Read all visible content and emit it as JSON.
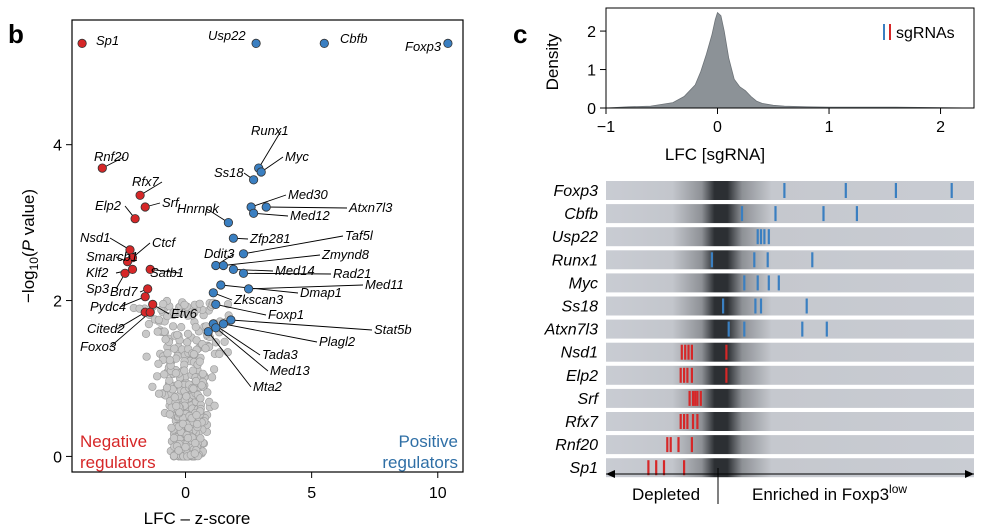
{
  "panel_b": {
    "letter": "b",
    "neg_label": [
      "Negative",
      "regulators"
    ],
    "pos_label": [
      "Positive",
      "regulators"
    ]
  },
  "panel_c": {
    "letter": "c",
    "legend_label": "sgRNAs",
    "arrow_left": "Depleted",
    "arrow_right": "Enriched in Foxp3",
    "arrow_right_sup": "low"
  },
  "colors": {
    "negative": "#d62728",
    "positive": "#3a7fc1",
    "neutral": "#c8c8c8",
    "density_fill": "#8c9297",
    "track_bg": "#c9ccd3",
    "negative_text": "#d62728",
    "positive_text": "#2f6fa6"
  },
  "chart_data": [
    {
      "type": "scatter",
      "title": "",
      "xlabel": "LFC – z-score",
      "ylabel": "−log10(P value)",
      "xlim": [
        -4.5,
        11
      ],
      "ylim": [
        -0.2,
        5.6
      ],
      "xticks": [
        0,
        5,
        10
      ],
      "yticks": [
        0,
        2,
        4
      ],
      "labeled_points": [
        {
          "name": "Sp1",
          "x": -4.1,
          "y": 5.3,
          "group": "negative"
        },
        {
          "name": "Usp22",
          "x": 2.8,
          "y": 5.3,
          "group": "positive"
        },
        {
          "name": "Cbfb",
          "x": 5.5,
          "y": 5.3,
          "group": "positive"
        },
        {
          "name": "Foxp3",
          "x": 10.4,
          "y": 5.3,
          "group": "positive"
        },
        {
          "name": "Rnf20",
          "x": -3.3,
          "y": 3.7,
          "group": "negative"
        },
        {
          "name": "Rfx7",
          "x": -1.8,
          "y": 3.35,
          "group": "negative"
        },
        {
          "name": "Srf",
          "x": -1.6,
          "y": 3.2,
          "group": "negative"
        },
        {
          "name": "Elp2",
          "x": -2.0,
          "y": 3.05,
          "group": "negative"
        },
        {
          "name": "Nsd1",
          "x": -2.2,
          "y": 2.65,
          "group": "negative"
        },
        {
          "name": "Ctcf",
          "x": -2.1,
          "y": 2.55,
          "group": "negative"
        },
        {
          "name": "Smarcb1",
          "x": -2.3,
          "y": 2.5,
          "group": "negative"
        },
        {
          "name": "Klf2",
          "x": -2.1,
          "y": 2.4,
          "group": "negative"
        },
        {
          "name": "Satb1",
          "x": -1.4,
          "y": 2.4,
          "group": "negative"
        },
        {
          "name": "Sp3",
          "x": -2.4,
          "y": 2.35,
          "group": "negative"
        },
        {
          "name": "Brd7",
          "x": -1.5,
          "y": 2.15,
          "group": "negative"
        },
        {
          "name": "Pydc4",
          "x": -1.6,
          "y": 2.05,
          "group": "negative"
        },
        {
          "name": "Etv6",
          "x": -1.3,
          "y": 1.95,
          "group": "negative"
        },
        {
          "name": "Cited2",
          "x": -1.6,
          "y": 1.85,
          "group": "negative"
        },
        {
          "name": "Foxo3",
          "x": -1.4,
          "y": 1.85,
          "group": "negative"
        },
        {
          "name": "Runx1",
          "x": 2.9,
          "y": 3.7,
          "group": "positive"
        },
        {
          "name": "Myc",
          "x": 3.0,
          "y": 3.65,
          "group": "positive"
        },
        {
          "name": "Ss18",
          "x": 2.7,
          "y": 3.55,
          "group": "positive"
        },
        {
          "name": "Med30",
          "x": 2.6,
          "y": 3.2,
          "group": "positive"
        },
        {
          "name": "Atxn7l3",
          "x": 3.2,
          "y": 3.2,
          "group": "positive"
        },
        {
          "name": "Med12",
          "x": 2.7,
          "y": 3.12,
          "group": "positive"
        },
        {
          "name": "Hnrnpk",
          "x": 1.7,
          "y": 3.0,
          "group": "positive"
        },
        {
          "name": "Zfp281",
          "x": 1.9,
          "y": 2.8,
          "group": "positive"
        },
        {
          "name": "Taf5l",
          "x": 2.3,
          "y": 2.6,
          "group": "positive"
        },
        {
          "name": "Ddit3",
          "x": 1.2,
          "y": 2.45,
          "group": "positive"
        },
        {
          "name": "Zmynd8",
          "x": 1.5,
          "y": 2.45,
          "group": "positive"
        },
        {
          "name": "Med14",
          "x": 1.9,
          "y": 2.4,
          "group": "positive"
        },
        {
          "name": "Rad21",
          "x": 2.3,
          "y": 2.35,
          "group": "positive"
        },
        {
          "name": "Dmap1",
          "x": 1.4,
          "y": 2.2,
          "group": "positive"
        },
        {
          "name": "Med11",
          "x": 2.5,
          "y": 2.15,
          "group": "positive"
        },
        {
          "name": "Zkscan3",
          "x": 1.1,
          "y": 2.1,
          "group": "positive"
        },
        {
          "name": "Foxp1",
          "x": 1.2,
          "y": 1.95,
          "group": "positive"
        },
        {
          "name": "Stat5b",
          "x": 1.8,
          "y": 1.75,
          "group": "positive"
        },
        {
          "name": "Plagl2",
          "x": 1.5,
          "y": 1.7,
          "group": "positive"
        },
        {
          "name": "Tada3",
          "x": 1.1,
          "y": 1.7,
          "group": "positive"
        },
        {
          "name": "Med13",
          "x": 1.2,
          "y": 1.65,
          "group": "positive"
        },
        {
          "name": "Mta2",
          "x": 0.9,
          "y": 1.6,
          "group": "positive"
        }
      ]
    },
    {
      "type": "area",
      "title": "",
      "xlabel": "LFC [sgRNA]",
      "ylabel": "Density",
      "xlim": [
        -1,
        2.3
      ],
      "ylim": [
        0,
        2.6
      ],
      "xticks": [
        -1,
        0,
        1,
        2
      ],
      "yticks": [
        0,
        1,
        2
      ],
      "legend": "top-right",
      "x": [
        -1.0,
        -0.8,
        -0.6,
        -0.4,
        -0.3,
        -0.2,
        -0.15,
        -0.1,
        -0.05,
        -0.02,
        0.0,
        0.03,
        0.06,
        0.1,
        0.15,
        0.2,
        0.25,
        0.3,
        0.35,
        0.4,
        0.5,
        0.6,
        0.8,
        1.0,
        1.3,
        1.6,
        2.0,
        2.3
      ],
      "y": [
        0.0,
        0.03,
        0.05,
        0.14,
        0.3,
        0.6,
        0.95,
        1.4,
        1.9,
        2.3,
        2.48,
        2.4,
        2.0,
        1.3,
        0.75,
        0.55,
        0.45,
        0.3,
        0.18,
        0.12,
        0.07,
        0.05,
        0.03,
        0.02,
        0.02,
        0.02,
        0.01,
        0.0
      ]
    },
    {
      "type": "strip",
      "title": "",
      "xlabel": "",
      "xlim": [
        -1,
        2.3
      ],
      "rows": [
        {
          "gene": "Foxp3",
          "group": "positive",
          "sgrna_lfc": [
            0.6,
            1.15,
            1.6,
            2.1
          ]
        },
        {
          "gene": "Cbfb",
          "group": "positive",
          "sgrna_lfc": [
            0.22,
            0.52,
            0.95,
            1.25
          ]
        },
        {
          "gene": "Usp22",
          "group": "positive",
          "sgrna_lfc": [
            0.36,
            0.39,
            0.42,
            0.46
          ]
        },
        {
          "gene": "Runx1",
          "group": "positive",
          "sgrna_lfc": [
            -0.05,
            0.33,
            0.45,
            0.85
          ]
        },
        {
          "gene": "Myc",
          "group": "positive",
          "sgrna_lfc": [
            0.24,
            0.36,
            0.46,
            0.55
          ]
        },
        {
          "gene": "Ss18",
          "group": "positive",
          "sgrna_lfc": [
            0.05,
            0.34,
            0.39,
            0.8
          ]
        },
        {
          "gene": "Atxn7l3",
          "group": "positive",
          "sgrna_lfc": [
            0.1,
            0.24,
            0.76,
            0.98
          ]
        },
        {
          "gene": "Nsd1",
          "group": "negative",
          "sgrna_lfc": [
            -0.32,
            -0.29,
            -0.26,
            -0.23,
            0.08
          ]
        },
        {
          "gene": "Elp2",
          "group": "negative",
          "sgrna_lfc": [
            -0.33,
            -0.3,
            -0.27,
            -0.23,
            0.08
          ]
        },
        {
          "gene": "Srf",
          "group": "negative",
          "sgrna_lfc": [
            -0.25,
            -0.22,
            -0.2,
            -0.18,
            -0.15
          ]
        },
        {
          "gene": "Rfx7",
          "group": "negative",
          "sgrna_lfc": [
            -0.33,
            -0.3,
            -0.27,
            -0.22,
            -0.18
          ]
        },
        {
          "gene": "Rnf20",
          "group": "negative",
          "sgrna_lfc": [
            -0.45,
            -0.42,
            -0.35,
            -0.23
          ]
        },
        {
          "gene": "Sp1",
          "group": "negative",
          "sgrna_lfc": [
            -0.62,
            -0.55,
            -0.48,
            -0.3
          ]
        }
      ]
    }
  ]
}
